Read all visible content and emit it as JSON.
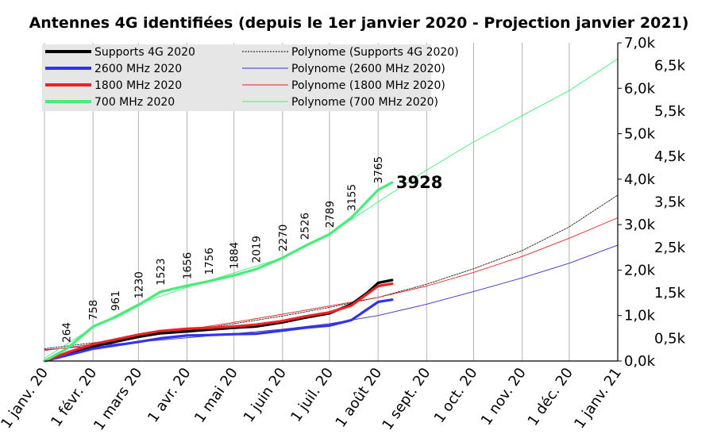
{
  "chart_data": {
    "type": "line",
    "title": "Antennes 4G identifiées (depuis le 1er janvier 2020 - Projection janvier 2021)",
    "x_tick_labels": [
      "1 janv. 20",
      "1 févr. 20",
      "1 mars 20",
      "1 avr. 20",
      "1 mai 20",
      "1 juin 20",
      "1 juil. 20",
      "1 août 20",
      "1 sept. 20",
      "1 oct. 20",
      "1 nov. 20",
      "1 déc. 20",
      "1 janv. 21"
    ],
    "x_dates": [
      "2020-01-01",
      "2020-02-01",
      "2020-03-01",
      "2020-04-01",
      "2020-05-01",
      "2020-06-01",
      "2020-07-01",
      "2020-08-01",
      "2020-09-01",
      "2020-10-01",
      "2020-11-01",
      "2020-12-01",
      "2021-01-01"
    ],
    "xlim": [
      "2020-01-01",
      "2021-01-01"
    ],
    "ylim": [
      0,
      7000
    ],
    "y_tick_labels_major": [
      "0,0k",
      "1,0k",
      "2,0k",
      "3,0k",
      "4,0k",
      "5,0k",
      "6,0k",
      "7,0k"
    ],
    "y_tick_labels_minor": [
      "0,5k",
      "1,5k",
      "2,5k",
      "3,5k",
      "4,5k",
      "5,5k",
      "6,5k"
    ],
    "grid": "vertical",
    "legend_position": "top-left",
    "last_value_label": "3928",
    "series": [
      {
        "name": "Supports 4G 2020",
        "color": "#000000",
        "width": 3.2,
        "points": [
          [
            "2020-01-01",
            0
          ],
          [
            "2020-01-15",
            170
          ],
          [
            "2020-02-01",
            320
          ],
          [
            "2020-03-01",
            530
          ],
          [
            "2020-03-15",
            610
          ],
          [
            "2020-04-01",
            650
          ],
          [
            "2020-04-15",
            690
          ],
          [
            "2020-05-01",
            730
          ],
          [
            "2020-05-15",
            760
          ],
          [
            "2020-06-01",
            850
          ],
          [
            "2020-06-15",
            950
          ],
          [
            "2020-07-01",
            1050
          ],
          [
            "2020-07-15",
            1250
          ],
          [
            "2020-07-25",
            1500
          ],
          [
            "2020-08-01",
            1720
          ],
          [
            "2020-08-10",
            1780
          ]
        ]
      },
      {
        "name": "2600 MHz 2020",
        "color": "#3333ee",
        "width": 3.2,
        "points": [
          [
            "2020-01-01",
            0
          ],
          [
            "2020-01-15",
            120
          ],
          [
            "2020-02-01",
            270
          ],
          [
            "2020-03-01",
            420
          ],
          [
            "2020-03-15",
            500
          ],
          [
            "2020-04-01",
            560
          ],
          [
            "2020-04-15",
            570
          ],
          [
            "2020-05-01",
            590
          ],
          [
            "2020-05-15",
            600
          ],
          [
            "2020-06-01",
            670
          ],
          [
            "2020-06-15",
            730
          ],
          [
            "2020-07-01",
            780
          ],
          [
            "2020-07-15",
            900
          ],
          [
            "2020-08-01",
            1300
          ],
          [
            "2020-08-10",
            1350
          ]
        ]
      },
      {
        "name": "1800 MHz 2020",
        "color": "#ee2222",
        "width": 3.2,
        "points": [
          [
            "2020-01-01",
            0
          ],
          [
            "2020-01-15",
            180
          ],
          [
            "2020-02-01",
            370
          ],
          [
            "2020-03-01",
            580
          ],
          [
            "2020-03-15",
            660
          ],
          [
            "2020-04-01",
            710
          ],
          [
            "2020-04-15",
            730
          ],
          [
            "2020-05-01",
            760
          ],
          [
            "2020-05-15",
            800
          ],
          [
            "2020-06-01",
            880
          ],
          [
            "2020-06-15",
            980
          ],
          [
            "2020-07-01",
            1070
          ],
          [
            "2020-07-15",
            1220
          ],
          [
            "2020-08-01",
            1650
          ],
          [
            "2020-08-10",
            1700
          ]
        ]
      },
      {
        "name": "700 MHz 2020",
        "color": "#44ee77",
        "width": 3.2,
        "points": [
          [
            "2020-01-01",
            0
          ],
          [
            "2020-01-15",
            264
          ],
          [
            "2020-02-01",
            758
          ],
          [
            "2020-02-15",
            961
          ],
          [
            "2020-03-01",
            1230
          ],
          [
            "2020-03-15",
            1523
          ],
          [
            "2020-04-01",
            1656
          ],
          [
            "2020-04-15",
            1756
          ],
          [
            "2020-05-01",
            1884
          ],
          [
            "2020-05-15",
            2019
          ],
          [
            "2020-06-01",
            2270
          ],
          [
            "2020-06-15",
            2526
          ],
          [
            "2020-07-01",
            2789
          ],
          [
            "2020-07-15",
            3155
          ],
          [
            "2020-08-01",
            3765
          ],
          [
            "2020-08-10",
            3928
          ]
        ],
        "labels": [
          "264",
          "758",
          "961",
          "1230",
          "1523",
          "1656",
          "1756",
          "1884",
          "2019",
          "2270",
          "2526",
          "2789",
          "3155",
          "3765"
        ]
      },
      {
        "name": "Polynome (Supports 4G 2020)",
        "color": "#000000",
        "width": 0.8,
        "dash": "2,1.5",
        "trend": true,
        "points": [
          [
            "2020-01-01",
            270
          ],
          [
            "2020-02-01",
            400
          ],
          [
            "2020-03-01",
            530
          ],
          [
            "2020-04-01",
            670
          ],
          [
            "2020-05-01",
            820
          ],
          [
            "2020-06-01",
            990
          ],
          [
            "2020-07-01",
            1180
          ],
          [
            "2020-08-01",
            1400
          ],
          [
            "2020-09-01",
            1690
          ],
          [
            "2020-10-01",
            2030
          ],
          [
            "2020-11-01",
            2430
          ],
          [
            "2020-12-01",
            2950
          ],
          [
            "2021-01-01",
            3650
          ]
        ]
      },
      {
        "name": "Polynome (2600 MHz 2020)",
        "color": "#3333cc",
        "width": 0.9,
        "trend": true,
        "points": [
          [
            "2020-01-01",
            250
          ],
          [
            "2020-02-01",
            330
          ],
          [
            "2020-03-01",
            420
          ],
          [
            "2020-04-01",
            510
          ],
          [
            "2020-05-01",
            600
          ],
          [
            "2020-06-01",
            700
          ],
          [
            "2020-07-01",
            820
          ],
          [
            "2020-08-01",
            1000
          ],
          [
            "2020-09-01",
            1250
          ],
          [
            "2020-10-01",
            1530
          ],
          [
            "2020-11-01",
            1830
          ],
          [
            "2020-12-01",
            2150
          ],
          [
            "2021-01-01",
            2550
          ]
        ]
      },
      {
        "name": "Polynome (1800 MHz 2020)",
        "color": "#ee2222",
        "width": 0.9,
        "trend": true,
        "points": [
          [
            "2020-01-01",
            230
          ],
          [
            "2020-02-01",
            370
          ],
          [
            "2020-03-01",
            530
          ],
          [
            "2020-04-01",
            690
          ],
          [
            "2020-05-01",
            850
          ],
          [
            "2020-06-01",
            1030
          ],
          [
            "2020-07-01",
            1210
          ],
          [
            "2020-08-01",
            1400
          ],
          [
            "2020-09-01",
            1650
          ],
          [
            "2020-10-01",
            1950
          ],
          [
            "2020-11-01",
            2300
          ],
          [
            "2020-12-01",
            2700
          ],
          [
            "2021-01-01",
            3150
          ]
        ]
      },
      {
        "name": "Polynome (700 MHz 2020)",
        "color": "#44ee77",
        "width": 0.9,
        "trend": true,
        "points": [
          [
            "2020-01-01",
            60
          ],
          [
            "2020-02-01",
            740
          ],
          [
            "2020-03-01",
            1260
          ],
          [
            "2020-04-01",
            1620
          ],
          [
            "2020-05-01",
            1940
          ],
          [
            "2020-06-01",
            2270
          ],
          [
            "2020-07-01",
            2800
          ],
          [
            "2020-08-01",
            3500
          ],
          [
            "2020-09-01",
            4200
          ],
          [
            "2020-10-01",
            4820
          ],
          [
            "2020-11-01",
            5400
          ],
          [
            "2020-12-01",
            5950
          ],
          [
            "2021-01-01",
            6650
          ]
        ]
      }
    ]
  }
}
